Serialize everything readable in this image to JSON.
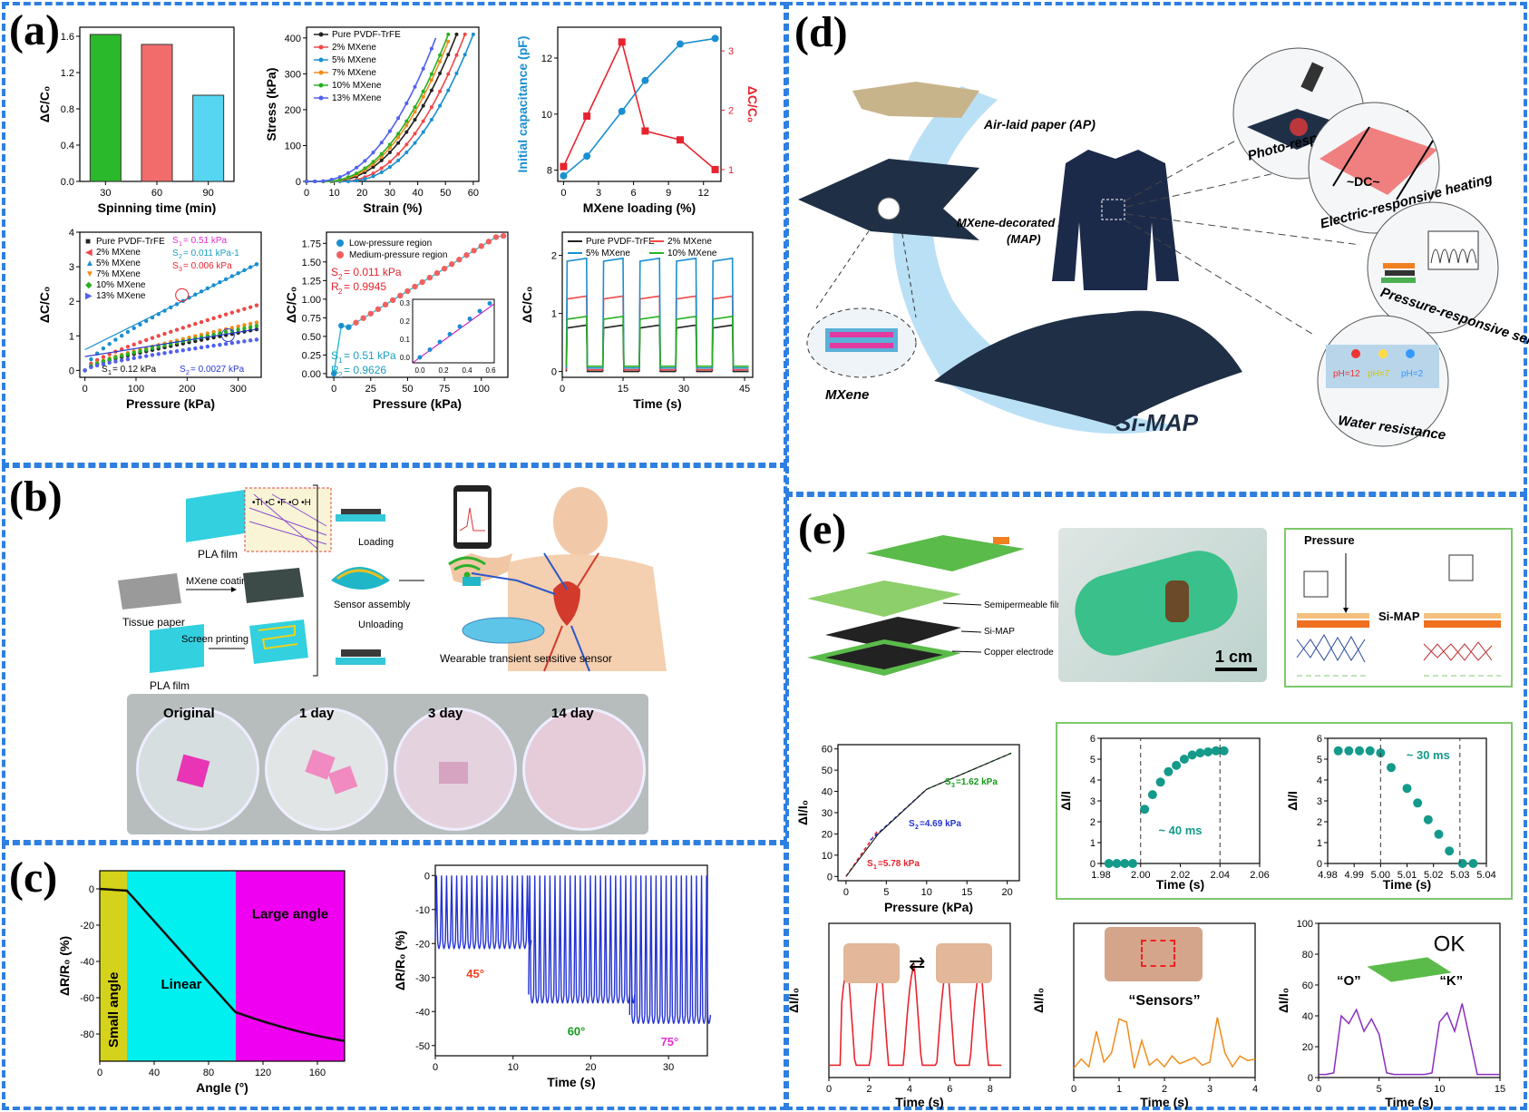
{
  "panels": {
    "a": "(a)",
    "b": "(b)",
    "c": "(c)",
    "d": "(d)",
    "e": "(e)"
  },
  "colors": {
    "border": "#2f7fe0"
  },
  "chart_data": [
    {
      "id": "a1",
      "type": "bar",
      "categories": [
        "30",
        "60",
        "90"
      ],
      "values": [
        1.62,
        1.51,
        0.95
      ],
      "colors": [
        "#2ab92a",
        "#f26c6c",
        "#56d6f0"
      ],
      "xlabel": "Spinning time (min)",
      "ylabel": "ΔC/C₀",
      "ylim": [
        0,
        1.7
      ],
      "yticks": [
        "0.0",
        "0.4",
        "0.8",
        "1.2",
        "1.6"
      ]
    },
    {
      "id": "a2",
      "type": "line",
      "xlabel": "Strain (%)",
      "ylabel": "Stress (kPa)",
      "xticks": [
        "0",
        "10",
        "20",
        "30",
        "40",
        "50",
        "60"
      ],
      "yticks": [
        "0",
        "100",
        "200",
        "300",
        "400"
      ],
      "xlim": [
        0,
        62
      ],
      "ylim": [
        0,
        430
      ],
      "legend": [
        "Pure PVDF-TrFE",
        "2% MXene",
        "5% MXene",
        "7% MXene",
        "10% MXene",
        "13% MXene"
      ],
      "series": [
        {
          "name": "Pure PVDF-TrFE",
          "end": 54,
          "color": "#222222"
        },
        {
          "name": "2% MXene",
          "end": 57,
          "color": "#f04848"
        },
        {
          "name": "5% MXene",
          "end": 60,
          "color": "#1a8fd0"
        },
        {
          "name": "7% MXene",
          "end": 52,
          "color": "#f08c1c"
        },
        {
          "name": "10% MXene",
          "end": 51,
          "color": "#29b023"
        },
        {
          "name": "13% MXene",
          "end": 47,
          "color": "#5060f0"
        }
      ]
    },
    {
      "id": "a3",
      "type": "line",
      "xlabel": "MXene loading (%)",
      "ylabel": "Initial capacitance (pF)",
      "ylabel2": "ΔC/C₀",
      "x": [
        0,
        2,
        5,
        7,
        10,
        13
      ],
      "series": [
        {
          "name": "Initial capacitance",
          "values": [
            7.8,
            8.5,
            10.1,
            11.2,
            12.5,
            12.7
          ],
          "color": "#1a8fd0"
        },
        {
          "name": "ΔC/C0",
          "values": [
            1.05,
            1.9,
            3.15,
            1.65,
            1.5,
            1.0
          ],
          "color": "#e8232e"
        }
      ],
      "xticks": [
        "0",
        "3",
        "6",
        "9",
        "12"
      ],
      "yticks": [
        "8",
        "10",
        "12"
      ],
      "yticks2": [
        "1",
        "2",
        "3"
      ]
    },
    {
      "id": "a4",
      "type": "scatter",
      "xlabel": "Pressure (kPa)",
      "ylabel": "ΔC/C₀",
      "xticks": [
        "0",
        "100",
        "200",
        "300"
      ],
      "yticks": [
        "0",
        "1",
        "2",
        "3",
        "4"
      ],
      "legend": [
        "Pure PVDF-TrFE",
        "2% MXene",
        "5% MXene",
        "7% MXene",
        "10% MXene",
        "13% MXene"
      ],
      "annotations": {
        "s1a": "S",
        "s1b": "1",
        "s1c": "= 0.51 kPa",
        "s2a": "S",
        "s2b": "2",
        "s2c": "= 0.011 kPa-1",
        "s3a": "S",
        "s3b": "3",
        "s3c": "= 0.006 kPa",
        "b1a": "S",
        "b1b": "1",
        "b1c": "= 0.12 kPa",
        "b2a": "S",
        "b2b": "2",
        "b2c": "= 0.0027 kPa"
      }
    },
    {
      "id": "a5",
      "type": "scatter",
      "xlabel": "Pressure (kPa)",
      "ylabel": "ΔC/C₀",
      "xticks": [
        "0",
        "25",
        "50",
        "75",
        "100"
      ],
      "yticks": [
        "0.00",
        "0.25",
        "0.50",
        "0.75",
        "1.00",
        "1.25",
        "1.50",
        "1.75"
      ],
      "legend": [
        "Low-pressure region",
        "Medium-pressure region"
      ],
      "annotations": {
        "s2a": "S",
        "s2b": "2",
        "s2c": "= 0.011 kPa",
        "r2a": "R",
        "r2b": "2",
        "r2c": "= 0.9945",
        "s1a": "S",
        "s1b": "1",
        "s1c": "= 0.51 kPa",
        "r1a": "R",
        "r1b": "2",
        "r1c": "= 0.9626"
      },
      "inset": {
        "xticks": [
          "0.0",
          "0.2",
          "0.4",
          "0.6"
        ],
        "yticks": [
          "0.0",
          "0.1",
          "0.2",
          "0.3"
        ]
      }
    },
    {
      "id": "a6",
      "type": "line",
      "xlabel": "Time (s)",
      "ylabel": "ΔC/C₀",
      "xticks": [
        "0",
        "15",
        "30",
        "45"
      ],
      "yticks": [
        "0",
        "1",
        "2"
      ],
      "legend": [
        "Pure PVDF-TrFE",
        "2% MXene",
        "5% MXene",
        "10% MXene"
      ],
      "levels": [
        0.75,
        1.25,
        1.9,
        0.9
      ],
      "colors": [
        "#222222",
        "#f04848",
        "#1a8fd0",
        "#29b023"
      ]
    },
    {
      "id": "c1",
      "type": "area",
      "xlabel": "Angle (°)",
      "ylabel": "ΔR/R₀ (%)",
      "xticks": [
        "0",
        "40",
        "80",
        "120",
        "160"
      ],
      "yticks": [
        "0",
        "-20",
        "-40",
        "-60",
        "-80"
      ],
      "regions": [
        "Small angle",
        "Linear",
        "Large angle"
      ],
      "region_bounds": [
        0,
        20,
        100,
        180
      ],
      "region_colors": [
        "#d4d21a",
        "#00f0f0",
        "#f000f0"
      ]
    },
    {
      "id": "c2",
      "type": "line",
      "xlabel": "Time (s)",
      "ylabel": "ΔR/R₀ (%)",
      "xticks": [
        "0",
        "10",
        "20",
        "30"
      ],
      "yticks": [
        "0",
        "-10",
        "-20",
        "-30",
        "-40",
        "-50"
      ],
      "labels": [
        "45°",
        "60°",
        "75°"
      ],
      "label_colors": [
        "#f04020",
        "#139a1a",
        "#e52ed0"
      ],
      "levels": [
        -22,
        -38,
        -44
      ]
    },
    {
      "id": "e1",
      "type": "line",
      "xlabel": "Pressure (kPa)",
      "ylabel": "ΔI/I₀",
      "xticks": [
        "0",
        "5",
        "10",
        "15",
        "20"
      ],
      "yticks": [
        "0",
        "10",
        "20",
        "30",
        "40",
        "50",
        "60"
      ],
      "annotations": {
        "s3a": "S",
        "s3b": "3",
        "s3c": "=1.62 kPa",
        "s2a": "S",
        "s2b": "2",
        "s2c": "=4.69 kPa",
        "s1a": "S",
        "s1b": "1",
        "s1c": "=5.78 kPa"
      }
    },
    {
      "id": "e2",
      "type": "scatter",
      "xlabel": "Time (s)",
      "ylabel": "ΔI/I",
      "xticks": [
        "1.98",
        "2.00",
        "2.02",
        "2.04",
        "2.06"
      ],
      "yticks": [
        "0",
        "1",
        "2",
        "3",
        "4",
        "5",
        "6"
      ],
      "annotation": "~ 40 ms"
    },
    {
      "id": "e3",
      "type": "scatter",
      "xlabel": "Time (s)",
      "ylabel": "ΔI/I",
      "xticks": [
        "4.98",
        "4.99",
        "5.00",
        "5.01",
        "5.02",
        "5.03",
        "5.04"
      ],
      "yticks": [
        "0",
        "1",
        "2",
        "3",
        "4",
        "5",
        "6"
      ],
      "annotation": "~ 30 ms"
    },
    {
      "id": "e4",
      "type": "line",
      "xlabel": "Time (s)",
      "ylabel": "ΔI/I₀",
      "xticks": [
        "0",
        "2",
        "4",
        "6",
        "8"
      ]
    },
    {
      "id": "e5",
      "type": "line",
      "xlabel": "Time (s)",
      "ylabel": "ΔI/I₀",
      "xticks": [
        "0",
        "1",
        "2",
        "3",
        "4"
      ],
      "caption": "“Sensors”"
    },
    {
      "id": "e6",
      "type": "line",
      "xlabel": "Time (s)",
      "ylabel": "ΔI/I₀",
      "xticks": [
        "0",
        "5",
        "10",
        "15"
      ],
      "yticks": [
        "0",
        "20",
        "40",
        "60",
        "80",
        "100"
      ],
      "labels": [
        "“O”",
        "“K”",
        "OK"
      ]
    }
  ],
  "panel_b": {
    "pla_film_1": "PLA film",
    "mxene_coating": "MXene coating",
    "tissue_paper": "Tissue paper",
    "screen_printing": "Screen printing",
    "pla_film_2": "PLA film",
    "loading": "Loading",
    "unloading": "Unloading",
    "sensor_assembly": "Sensor assembly",
    "wearable": "Wearable transient sensitive sensor",
    "legend": "•Ti •C •F •O •H",
    "photos": [
      "Original",
      "1 day",
      "3 day",
      "14 day"
    ]
  },
  "panel_d": {
    "ap": "Air-laid paper (AP)",
    "map1": "MXene-decorated AP",
    "map2": "(MAP)",
    "mxene": "MXene",
    "simap": "Si-MAP",
    "photo": "Photo-responsive heating",
    "electric": "Electric-responsive heating",
    "dc": "~DC~",
    "pressure": "Pressure-responsive sensing",
    "water": "Water resistance",
    "ph": [
      "pH=12",
      "pH=7",
      "pH=2"
    ]
  },
  "panel_e": {
    "semi": "Semipermeable film",
    "simap": "Si-MAP",
    "copper": "Copper electrode",
    "scale": "1 cm",
    "pressure": "Pressure",
    "simap2": "Si-MAP"
  }
}
